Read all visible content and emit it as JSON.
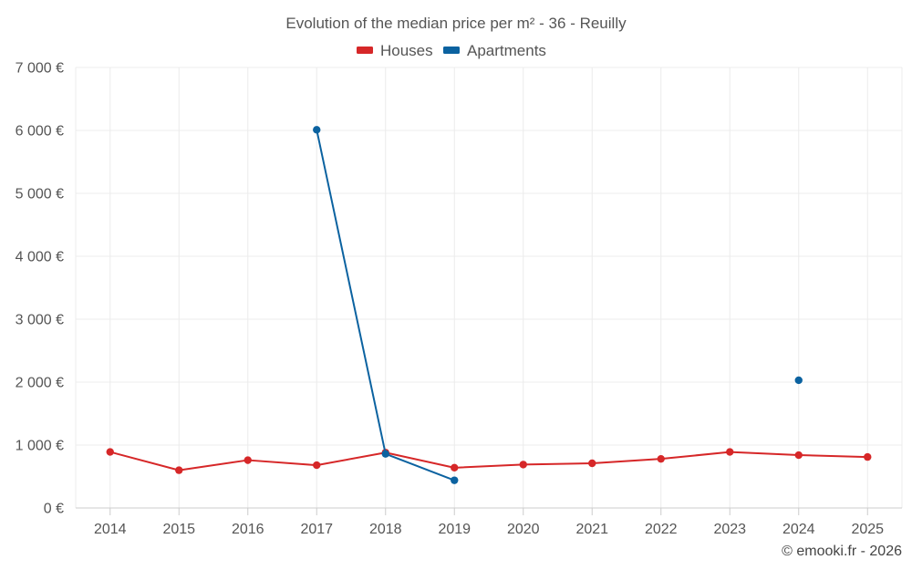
{
  "chart_data": {
    "type": "line",
    "title": "Evolution of the median price per m² - 36 - Reuilly",
    "credit": "© emooki.fr - 2026",
    "xlabel": "",
    "ylabel": "",
    "categories": [
      "2014",
      "2015",
      "2016",
      "2017",
      "2018",
      "2019",
      "2020",
      "2021",
      "2022",
      "2023",
      "2024",
      "2025"
    ],
    "y_ticks": [
      0,
      1000,
      2000,
      3000,
      4000,
      5000,
      6000,
      7000
    ],
    "y_tick_labels": [
      "0 €",
      "1 000 €",
      "2 000 €",
      "3 000 €",
      "4 000 €",
      "5 000 €",
      "6 000 €",
      "7 000 €"
    ],
    "ylim": [
      0,
      7000
    ],
    "grid": true,
    "legend_position": "top-center",
    "series": [
      {
        "name": "Houses",
        "color": "#d62728",
        "values": [
          890,
          600,
          760,
          680,
          880,
          640,
          690,
          710,
          780,
          890,
          840,
          810
        ]
      },
      {
        "name": "Apartments",
        "color": "#0b62a0",
        "values": [
          null,
          null,
          null,
          6010,
          860,
          440,
          null,
          null,
          null,
          null,
          2030,
          null
        ]
      }
    ]
  }
}
